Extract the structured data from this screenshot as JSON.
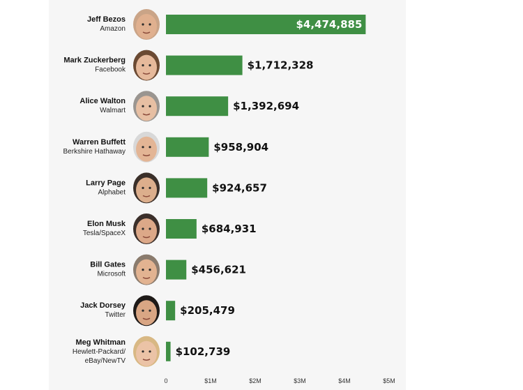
{
  "chart_data": {
    "type": "bar",
    "orientation": "horizontal",
    "bar_color": "#3f8f44",
    "xlim": [
      0,
      5000000
    ],
    "x_tick_labels": [
      "0",
      "$1M",
      "$2M",
      "$3M",
      "$4M",
      "$5M"
    ],
    "x_ticks": [
      0,
      1000000,
      2000000,
      3000000,
      4000000,
      5000000
    ],
    "items": [
      {
        "name": "Jeff Bezos",
        "company": [
          "Amazon"
        ],
        "value": 4474885,
        "label": "$4,474,885",
        "label_inside": true,
        "portrait": "portrait-jeff-bezos"
      },
      {
        "name": "Mark Zuckerberg",
        "company": [
          "Facebook"
        ],
        "value": 1712328,
        "label": "$1,712,328",
        "portrait": "portrait-mark-zuckerberg"
      },
      {
        "name": "Alice Walton",
        "company": [
          "Walmart"
        ],
        "value": 1392694,
        "label": "$1,392,694",
        "portrait": "portrait-alice-walton"
      },
      {
        "name": "Warren Buffett",
        "company": [
          "Berkshire Hathaway"
        ],
        "value": 958904,
        "label": "$958,904",
        "portrait": "portrait-warren-buffett"
      },
      {
        "name": "Larry Page",
        "company": [
          "Alphabet"
        ],
        "value": 924657,
        "label": "$924,657",
        "portrait": "portrait-larry-page"
      },
      {
        "name": "Elon Musk",
        "company": [
          "Tesla/SpaceX"
        ],
        "value": 684931,
        "label": "$684,931",
        "portrait": "portrait-elon-musk"
      },
      {
        "name": "Bill Gates",
        "company": [
          "Microsoft"
        ],
        "value": 456621,
        "label": "$456,621",
        "portrait": "portrait-bill-gates"
      },
      {
        "name": "Jack Dorsey",
        "company": [
          "Twitter"
        ],
        "value": 205479,
        "label": "$205,479",
        "portrait": "portrait-jack-dorsey"
      },
      {
        "name": "Meg Whitman",
        "company": [
          "Hewlett-Packard/",
          "eBay/NewTV"
        ],
        "value": 102739,
        "label": "$102,739",
        "portrait": "portrait-meg-whitman"
      }
    ]
  }
}
